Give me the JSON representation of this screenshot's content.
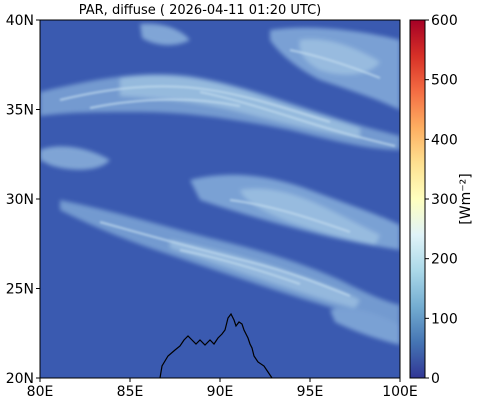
{
  "title": "PAR, diffuse ( 2026-04-11 01:20 UTC)",
  "map": {
    "lon_labels": [
      "80E",
      "85E",
      "90E",
      "95E",
      "100E"
    ],
    "lat_labels": [
      "40N",
      "35N",
      "30N",
      "25N",
      "20N"
    ],
    "lon_range": [
      80,
      100
    ],
    "lat_range": [
      20,
      40
    ],
    "background_color": "#3a5ab0",
    "cloud_color_light": "#9fc6e4",
    "cloud_color_mid": "#6f9acc",
    "coastline_color": "#000000"
  },
  "colorbar": {
    "label": "[Wm⁻²]",
    "ticks": [
      "600",
      "500",
      "400",
      "300",
      "200",
      "100",
      "0"
    ],
    "range": [
      0,
      600
    ],
    "colormap": "RdYlBu_r",
    "colors": [
      "#313695",
      "#4575b4",
      "#74add1",
      "#abd9e9",
      "#e0f3f8",
      "#ffffbf",
      "#fee090",
      "#fdae61",
      "#f46d43",
      "#d73027",
      "#a50026"
    ]
  }
}
